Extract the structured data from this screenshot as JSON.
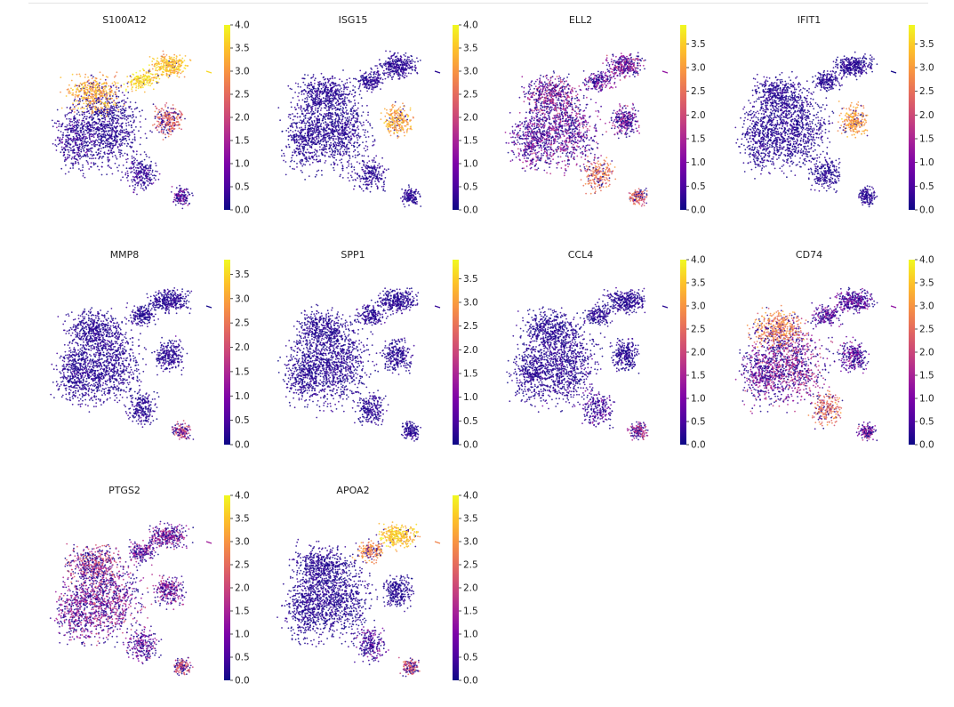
{
  "chart_data": [
    {
      "type": "scatter",
      "title": "S100A12",
      "colorscale": "plasma",
      "colorbar": {
        "vmin": 0,
        "vmax": 4.0,
        "ticks": [
          "0.0",
          "0.5",
          "1.0",
          "1.5",
          "2.0",
          "2.5",
          "3.0",
          "3.5",
          "4.0"
        ]
      },
      "expression": {
        "cluster_1": 0.2,
        "cluster_2": 3.2,
        "cluster_3": 0.6,
        "cluster_4": 3.4,
        "cluster_5": 3.7,
        "cluster_6": 2.4,
        "cluster_7": 0.6,
        "cluster_8": 1.2
      }
    },
    {
      "type": "scatter",
      "title": "ISG15",
      "colorscale": "plasma",
      "colorbar": {
        "vmin": 0,
        "vmax": 4.0,
        "ticks": [
          "0.0",
          "0.5",
          "1.0",
          "1.5",
          "2.0",
          "2.5",
          "3.0",
          "3.5",
          "4.0"
        ]
      },
      "expression": {
        "cluster_1": 0.05,
        "cluster_2": 0.15,
        "cluster_3": 0.1,
        "cluster_4": 0.3,
        "cluster_5": 0.2,
        "cluster_6": 3.2,
        "cluster_7": 0.3,
        "cluster_8": 0.2
      }
    },
    {
      "type": "scatter",
      "title": "ELL2",
      "colorscale": "plasma",
      "colorbar": {
        "vmin": 0,
        "vmax": 3.9,
        "ticks": [
          "0.0",
          "0.5",
          "1.0",
          "1.5",
          "2.0",
          "2.5",
          "3.0",
          "3.5"
        ]
      },
      "expression": {
        "cluster_1": 1.4,
        "cluster_2": 1.6,
        "cluster_3": 1.2,
        "cluster_4": 1.5,
        "cluster_5": 1.2,
        "cluster_6": 1.4,
        "cluster_7": 2.6,
        "cluster_8": 2.4
      }
    },
    {
      "type": "scatter",
      "title": "IFIT1",
      "colorscale": "plasma",
      "colorbar": {
        "vmin": 0,
        "vmax": 3.9,
        "ticks": [
          "0.0",
          "0.5",
          "1.0",
          "1.5",
          "2.0",
          "2.5",
          "3.0",
          "3.5"
        ]
      },
      "expression": {
        "cluster_1": 0.05,
        "cluster_2": 0.05,
        "cluster_3": 0.05,
        "cluster_4": 0.1,
        "cluster_5": 0.05,
        "cluster_6": 3.0,
        "cluster_7": 0.1,
        "cluster_8": 0.3
      }
    },
    {
      "type": "scatter",
      "title": "MMP8",
      "colorscale": "plasma",
      "colorbar": {
        "vmin": 0,
        "vmax": 3.8,
        "ticks": [
          "0.0",
          "0.5",
          "1.0",
          "1.5",
          "2.0",
          "2.5",
          "3.0",
          "3.5"
        ]
      },
      "expression": {
        "cluster_1": 0.02,
        "cluster_2": 0.05,
        "cluster_3": 0.02,
        "cluster_4": 0.05,
        "cluster_5": 0.05,
        "cluster_6": 0.05,
        "cluster_7": 0.05,
        "cluster_8": 1.8
      }
    },
    {
      "type": "scatter",
      "title": "SPP1",
      "colorscale": "plasma",
      "colorbar": {
        "vmin": 0,
        "vmax": 3.9,
        "ticks": [
          "0.0",
          "0.5",
          "1.0",
          "1.5",
          "2.0",
          "2.5",
          "3.0",
          "3.5"
        ]
      },
      "expression": {
        "cluster_1": 0.02,
        "cluster_2": 0.05,
        "cluster_3": 0.02,
        "cluster_4": 0.05,
        "cluster_5": 0.3,
        "cluster_6": 0.1,
        "cluster_7": 0.1,
        "cluster_8": 0.2
      }
    },
    {
      "type": "scatter",
      "title": "CCL4",
      "colorscale": "plasma",
      "colorbar": {
        "vmin": 0,
        "vmax": 4.0,
        "ticks": [
          "0.0",
          "0.5",
          "1.0",
          "1.5",
          "2.0",
          "2.5",
          "3.0",
          "3.5",
          "4.0"
        ]
      },
      "expression": {
        "cluster_1": 0.3,
        "cluster_2": 0.1,
        "cluster_3": 0.2,
        "cluster_4": 0.2,
        "cluster_5": 0.2,
        "cluster_6": 0.2,
        "cluster_7": 0.9,
        "cluster_8": 1.8
      }
    },
    {
      "type": "scatter",
      "title": "CD74",
      "colorscale": "plasma",
      "colorbar": {
        "vmin": 0,
        "vmax": 4.0,
        "ticks": [
          "0.0",
          "0.5",
          "1.0",
          "1.5",
          "2.0",
          "2.5",
          "3.0",
          "3.5",
          "4.0"
        ]
      },
      "expression": {
        "cluster_1": 1.6,
        "cluster_2": 2.8,
        "cluster_3": 1.4,
        "cluster_4": 1.1,
        "cluster_5": 1.2,
        "cluster_6": 1.2,
        "cluster_7": 2.6,
        "cluster_8": 1.4
      }
    },
    {
      "type": "scatter",
      "title": "PTGS2",
      "colorscale": "plasma",
      "colorbar": {
        "vmin": 0,
        "vmax": 4.0,
        "ticks": [
          "0.0",
          "0.5",
          "1.0",
          "1.5",
          "2.0",
          "2.5",
          "3.0",
          "3.5",
          "4.0"
        ]
      },
      "expression": {
        "cluster_1": 1.6,
        "cluster_2": 2.0,
        "cluster_3": 1.5,
        "cluster_4": 1.5,
        "cluster_5": 1.4,
        "cluster_6": 1.5,
        "cluster_7": 1.3,
        "cluster_8": 2.2
      }
    },
    {
      "type": "scatter",
      "title": "APOA2",
      "colorscale": "plasma",
      "colorbar": {
        "vmin": 0,
        "vmax": 4.0,
        "ticks": [
          "0.0",
          "0.5",
          "1.0",
          "1.5",
          "2.0",
          "2.5",
          "3.0",
          "3.5",
          "4.0"
        ]
      },
      "expression": {
        "cluster_1": 0.05,
        "cluster_2": 0.05,
        "cluster_3": 0.05,
        "cluster_4": 3.5,
        "cluster_5": 2.8,
        "cluster_6": 0.1,
        "cluster_7": 1.0,
        "cluster_8": 2.2
      }
    }
  ]
}
